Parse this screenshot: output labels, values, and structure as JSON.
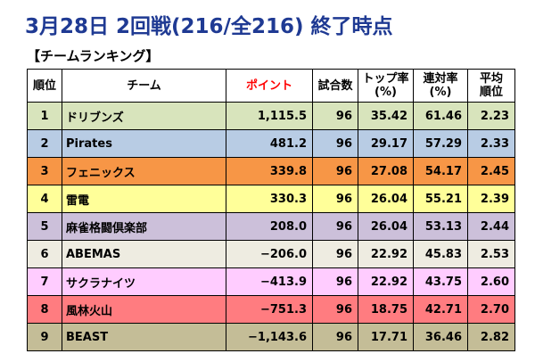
{
  "title": "3月28日 2回戦(216/全216) 終了時点",
  "subtitle": "【チームランキング】",
  "columns": {
    "rank": "順位",
    "team": "チーム",
    "points": "ポイント",
    "games": "試合数",
    "top_rate_l1": "トップ率",
    "top_rate_l2": "(%)",
    "ren_rate_l1": "連対率",
    "ren_rate_l2": "(%)",
    "avg_l1": "平均",
    "avg_l2": "順位"
  },
  "rows": [
    {
      "rank": "1",
      "team": "ドリブンズ",
      "points": "1,115.5",
      "games": "96",
      "top": "35.42",
      "ren": "61.46",
      "avg": "2.23",
      "color": "#d8e4bc"
    },
    {
      "rank": "2",
      "team": "Pirates",
      "points": "481.2",
      "games": "96",
      "top": "29.17",
      "ren": "57.29",
      "avg": "2.33",
      "color": "#b8cce4"
    },
    {
      "rank": "3",
      "team": "フェニックス",
      "points": "339.8",
      "games": "96",
      "top": "27.08",
      "ren": "54.17",
      "avg": "2.45",
      "color": "#f79646"
    },
    {
      "rank": "4",
      "team": "雷電",
      "points": "330.3",
      "games": "96",
      "top": "26.04",
      "ren": "55.21",
      "avg": "2.39",
      "color": "#ffff99"
    },
    {
      "rank": "5",
      "team": "麻雀格闘倶楽部",
      "points": "208.0",
      "games": "96",
      "top": "26.04",
      "ren": "53.13",
      "avg": "2.44",
      "color": "#ccc0da"
    },
    {
      "rank": "6",
      "team": "ABEMAS",
      "points": "−206.0",
      "games": "96",
      "top": "22.92",
      "ren": "45.83",
      "avg": "2.53",
      "color": "#eeece1"
    },
    {
      "rank": "7",
      "team": "サクラナイツ",
      "points": "−413.9",
      "games": "96",
      "top": "22.92",
      "ren": "43.75",
      "avg": "2.60",
      "color": "#ffccff"
    },
    {
      "rank": "8",
      "team": "風林火山",
      "points": "−751.3",
      "games": "96",
      "top": "18.75",
      "ren": "42.71",
      "avg": "2.70",
      "color": "#ff7c80"
    },
    {
      "rank": "9",
      "team": "BEAST",
      "points": "−1,143.6",
      "games": "96",
      "top": "17.71",
      "ren": "36.46",
      "avg": "2.82",
      "color": "#c4bd97"
    }
  ]
}
